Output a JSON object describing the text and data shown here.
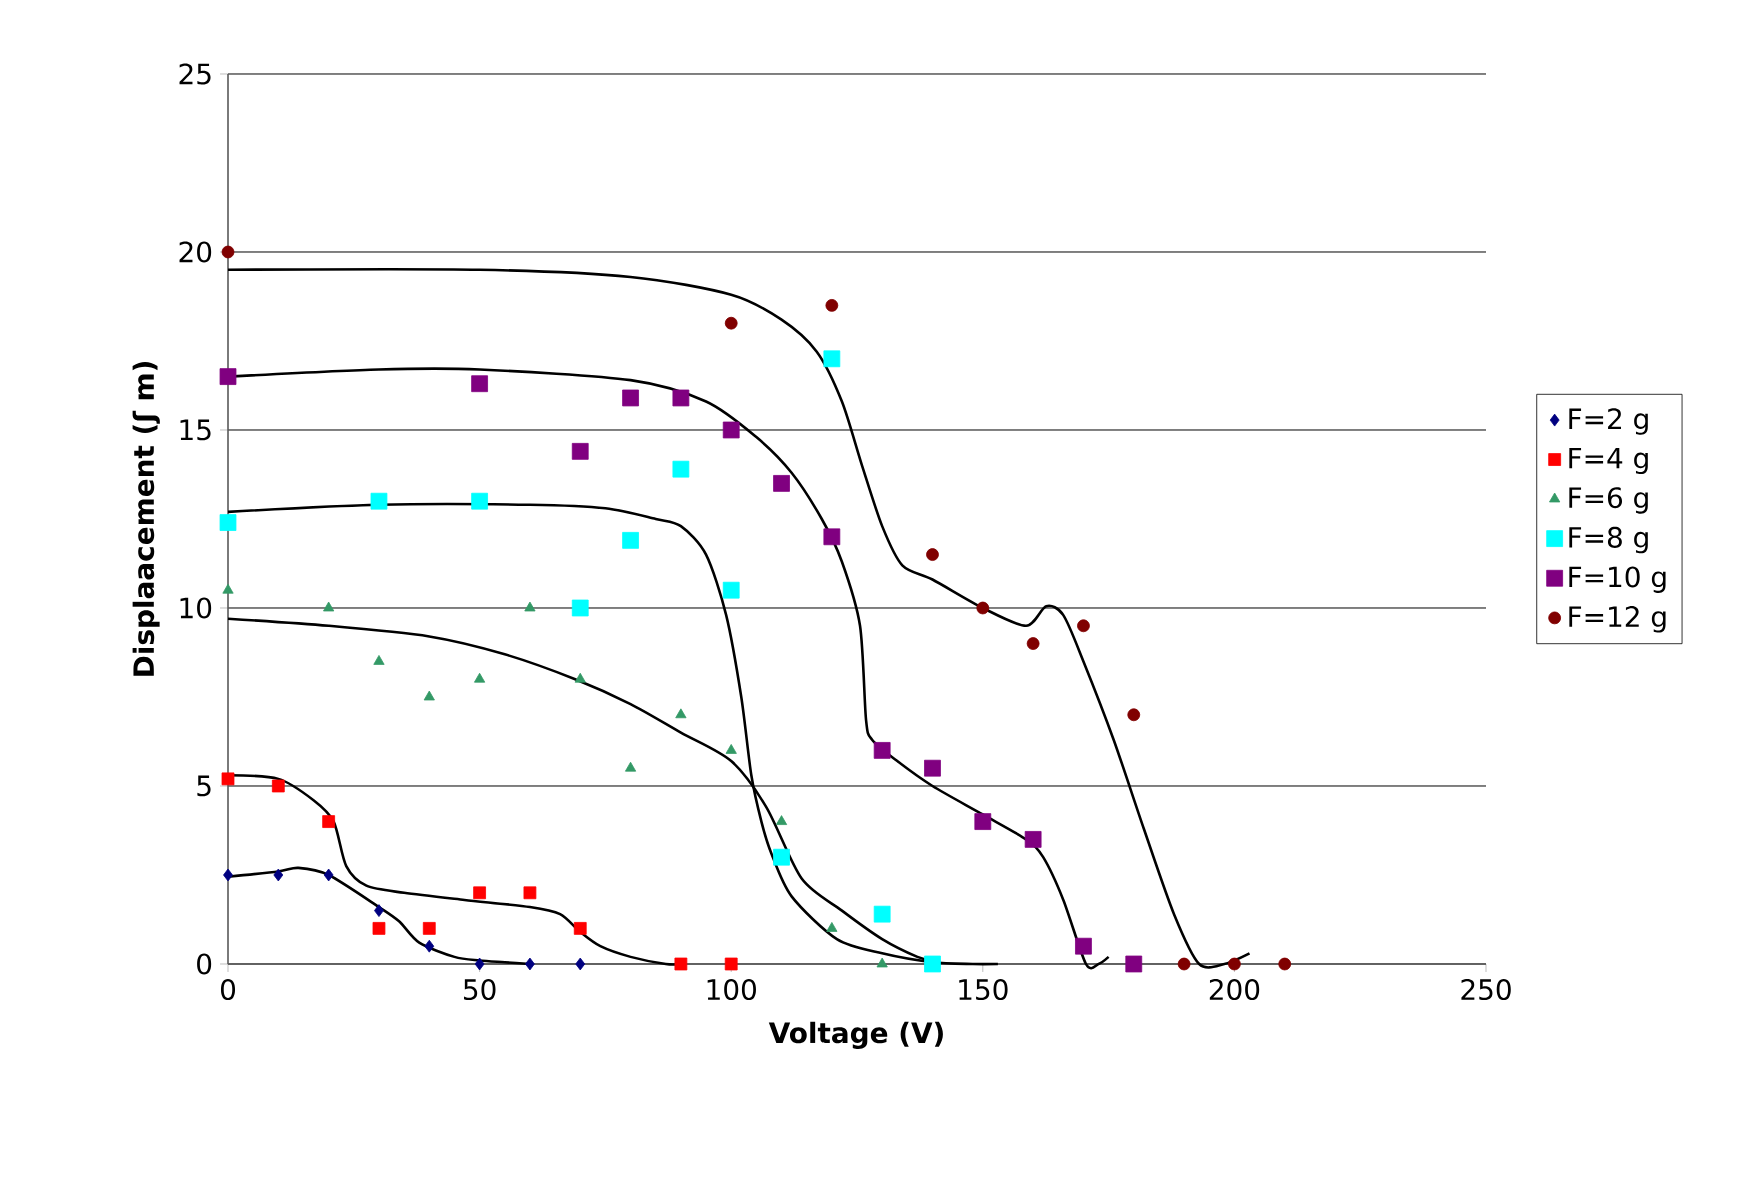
{
  "chart_data": {
    "type": "scatter",
    "xlabel": "Voltage (V)",
    "ylabel": "Displaacement (ʃ m)",
    "xlim": [
      0,
      250
    ],
    "xticks": [
      0,
      50,
      100,
      150,
      200,
      250
    ],
    "ylim": [
      0,
      25
    ],
    "yticks": [
      0,
      5,
      10,
      15,
      20,
      25
    ],
    "grid": "y",
    "legend": "right",
    "series": [
      {
        "name": "F=2 g",
        "color": "#000080",
        "marker": "diamond",
        "x": [
          0,
          10,
          20,
          30,
          40,
          50,
          60,
          70
        ],
        "values": [
          2.5,
          2.5,
          2.5,
          1.5,
          0.5,
          0,
          0,
          0
        ]
      },
      {
        "name": "F=4 g",
        "color": "#ff0000",
        "marker": "square",
        "x": [
          0,
          10,
          20,
          30,
          40,
          50,
          60,
          70,
          90,
          100
        ],
        "values": [
          5.2,
          5,
          4,
          1,
          1,
          2,
          2,
          1,
          0,
          0
        ]
      },
      {
        "name": "F=6 g",
        "color": "#339966",
        "marker": "triangle",
        "x": [
          0,
          20,
          30,
          40,
          50,
          60,
          70,
          80,
          90,
          100,
          110,
          120,
          130
        ],
        "values": [
          10.5,
          10,
          8.5,
          7.5,
          8,
          10,
          8,
          5.5,
          7,
          6,
          4,
          1,
          0
        ]
      },
      {
        "name": "F=8 g",
        "color": "#00ffff",
        "marker": "square",
        "x": [
          0,
          30,
          50,
          70,
          80,
          90,
          100,
          110,
          120,
          130,
          140
        ],
        "values": [
          12.4,
          13,
          13,
          10,
          11.9,
          13.9,
          10.5,
          3,
          17,
          1.4,
          0
        ]
      },
      {
        "name": "F=10 g",
        "color": "#800080",
        "marker": "square",
        "x": [
          0,
          50,
          70,
          80,
          90,
          100,
          110,
          120,
          130,
          140,
          150,
          160,
          170,
          180
        ],
        "values": [
          16.5,
          16.3,
          14.4,
          15.9,
          15.9,
          15,
          13.5,
          12,
          6,
          5.5,
          4,
          3.5,
          0.5,
          0
        ]
      },
      {
        "name": "F=12 g",
        "color": "#800000",
        "marker": "circle",
        "x": [
          0,
          100,
          120,
          140,
          150,
          160,
          170,
          180,
          190,
          200,
          210
        ],
        "values": [
          20,
          18,
          18.5,
          11.5,
          10,
          9,
          9.5,
          7,
          0,
          0,
          0
        ]
      },
      {
        "type": "line",
        "color": "#000000",
        "marker": "none",
        "x": [
          0,
          10,
          14,
          20,
          30,
          34,
          38,
          45,
          50,
          55,
          60
        ],
        "values": [
          2.45,
          2.6,
          2.7,
          2.5,
          1.6,
          1.2,
          0.6,
          0.2,
          0.1,
          0.05,
          0
        ]
      },
      {
        "type": "line",
        "color": "#000000",
        "marker": "none",
        "x": [
          0,
          10,
          17,
          21,
          23.5,
          27.5,
          35,
          47,
          60,
          66,
          70,
          74,
          80,
          87,
          90
        ],
        "values": [
          5.3,
          5.2,
          4.6,
          4,
          2.75,
          2.2,
          2,
          1.8,
          1.6,
          1.4,
          0.9,
          0.5,
          0.2,
          0,
          0
        ]
      },
      {
        "type": "line",
        "color": "#000000",
        "marker": "none",
        "x": [
          0,
          20,
          40,
          55,
          69,
          80,
          90,
          100,
          107,
          114,
          122,
          130,
          137,
          140
        ],
        "values": [
          9.7,
          9.5,
          9.2,
          8.7,
          8,
          7.3,
          6.5,
          5.7,
          4.4,
          2.4,
          1.5,
          0.7,
          0.2,
          0.1
        ]
      },
      {
        "type": "line",
        "color": "#000000",
        "marker": "none",
        "x": [
          0,
          30,
          60,
          75,
          85,
          90,
          95,
          99,
          102,
          104,
          106,
          108,
          112,
          121,
          130,
          140,
          148,
          153
        ],
        "values": [
          12.7,
          12.9,
          12.9,
          12.8,
          12.5,
          12.3,
          11.5,
          9.8,
          7.5,
          5.3,
          4,
          3.1,
          1.9,
          0.7,
          0.3,
          0.05,
          0,
          0
        ]
      },
      {
        "type": "line",
        "color": "#000000",
        "marker": "none",
        "x": [
          0,
          30,
          50,
          80,
          95,
          105,
          112,
          118,
          122,
          125.6,
          126.8,
          128,
          133,
          140,
          150,
          158.6,
          162,
          166,
          170.5,
          173,
          175
        ],
        "values": [
          16.5,
          16.7,
          16.7,
          16.4,
          15.8,
          14.8,
          13.8,
          12.5,
          11.3,
          9.5,
          6.85,
          6.3,
          5.7,
          5,
          4.2,
          3.5,
          3,
          1.8,
          0,
          0,
          0.2
        ]
      },
      {
        "type": "line",
        "color": "#000000",
        "marker": "none",
        "x": [
          0,
          50,
          80,
          100,
          110,
          117,
          122,
          126,
          130,
          134,
          140,
          150,
          158.6,
          162.6,
          166,
          170,
          176,
          182,
          188,
          193,
          198,
          203
        ],
        "values": [
          19.5,
          19.5,
          19.3,
          18.8,
          18.1,
          17.2,
          15.8,
          14,
          12.3,
          11.2,
          10.8,
          10,
          9.5,
          10.05,
          9.8,
          8.5,
          6.3,
          3.8,
          1.4,
          0,
          0,
          0.3
        ]
      }
    ]
  }
}
